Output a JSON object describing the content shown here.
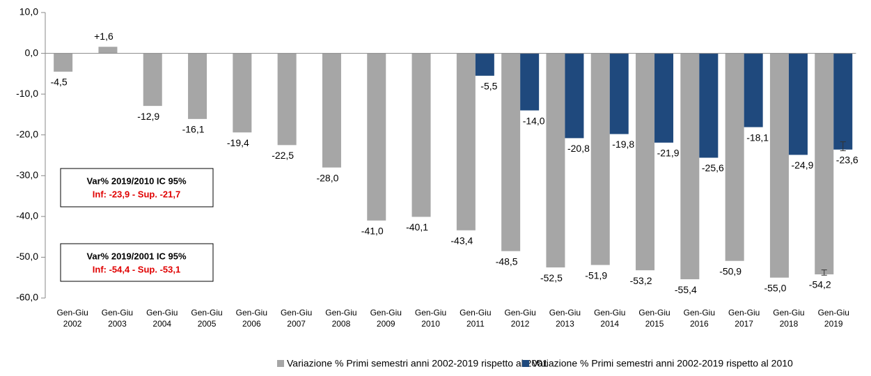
{
  "chart_data": {
    "type": "bar",
    "categories": [
      "Gen-Giu 2002",
      "Gen-Giu 2003",
      "Gen-Giu 2004",
      "Gen-Giu 2005",
      "Gen-Giu 2006",
      "Gen-Giu 2007",
      "Gen-Giu 2008",
      "Gen-Giu 2009",
      "Gen-Giu 2010",
      "Gen-Giu 2011",
      "Gen-Giu 2012",
      "Gen-Giu 2013",
      "Gen-Giu 2014",
      "Gen-Giu 2015",
      "Gen-Giu 2016",
      "Gen-Giu 2017",
      "Gen-Giu 2018",
      "Gen-Giu 2019"
    ],
    "series": [
      {
        "name": "Variazione % Primi semestri anni 2002-2019 rispetto al 2001",
        "color": "#a6a6a6",
        "values": [
          -4.5,
          1.6,
          -12.9,
          -16.1,
          -19.4,
          -22.5,
          -28.0,
          -41.0,
          -40.1,
          -43.4,
          -48.5,
          -52.5,
          -51.9,
          -53.2,
          -55.4,
          -50.9,
          -55.0,
          -54.2
        ],
        "value_labels": [
          "-4,5",
          "+1,6",
          "-12,9",
          "-16,1",
          "-19,4",
          "-22,5",
          "-28,0",
          "-41,0",
          "-40,1",
          "-43,4",
          "-48,5",
          "-52,5",
          "-51,9",
          "-53,2",
          "-55,4",
          "-50,9",
          "-55,0",
          "-54,2"
        ],
        "ci_low": [
          null,
          null,
          null,
          null,
          null,
          null,
          null,
          null,
          null,
          null,
          null,
          null,
          null,
          null,
          null,
          null,
          null,
          -54.4
        ],
        "ci_high": [
          null,
          null,
          null,
          null,
          null,
          null,
          null,
          null,
          null,
          null,
          null,
          null,
          null,
          null,
          null,
          null,
          null,
          -53.1
        ]
      },
      {
        "name": "Variazione % Primi semestri anni 2002-2019 rispetto al 2010",
        "color": "#1f497d",
        "values": [
          null,
          null,
          null,
          null,
          null,
          null,
          null,
          null,
          null,
          -5.5,
          -14.0,
          -20.8,
          -19.8,
          -21.9,
          -25.6,
          -18.1,
          -24.9,
          -23.6
        ],
        "value_labels": [
          null,
          null,
          null,
          null,
          null,
          null,
          null,
          null,
          null,
          "-5,5",
          "-14,0",
          "-20,8",
          "-19,8",
          "-21,9",
          "-25,6",
          "-18,1",
          "-24,9",
          "-23,6"
        ],
        "ci_low": [
          null,
          null,
          null,
          null,
          null,
          null,
          null,
          null,
          null,
          null,
          null,
          null,
          null,
          null,
          null,
          null,
          null,
          -23.9
        ],
        "ci_high": [
          null,
          null,
          null,
          null,
          null,
          null,
          null,
          null,
          null,
          null,
          null,
          null,
          null,
          null,
          null,
          null,
          null,
          -21.7
        ]
      }
    ],
    "ylim": [
      -60,
      10
    ],
    "yticks": [
      {
        "value": 10,
        "label": "10,0"
      },
      {
        "value": 0,
        "label": "0,0"
      },
      {
        "value": -10,
        "label": "-10,0"
      },
      {
        "value": -20,
        "label": "-20,0"
      },
      {
        "value": -30,
        "label": "-30,0"
      },
      {
        "value": -40,
        "label": "-40,0"
      },
      {
        "value": -50,
        "label": "-50,0"
      },
      {
        "value": -60,
        "label": "-60,0"
      }
    ],
    "annotations": [
      {
        "title": "Var% 2019/2010  IC 95%",
        "text": "Inf: -23,9 - Sup. -21,7"
      },
      {
        "title": "Var% 2019/2001  IC 95%",
        "text": "Inf: -54,4 - Sup. -53,1"
      }
    ],
    "legend": "bottom"
  }
}
